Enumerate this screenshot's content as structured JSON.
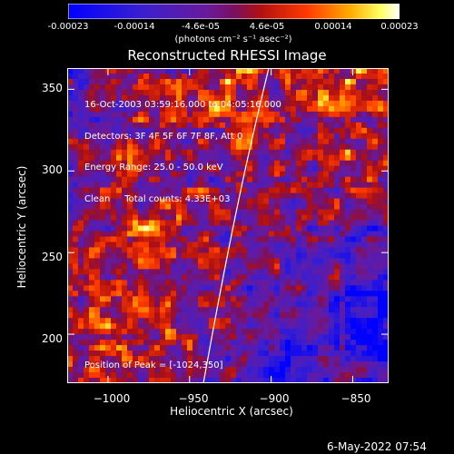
{
  "colorbar": {
    "ticks": [
      "-0.00023",
      "-0.00014",
      "-4.6e-05",
      "4.6e-05",
      "0.00014",
      "0.00023"
    ],
    "tick_values": [
      -0.00023,
      -0.00014,
      -4.6e-05,
      4.6e-05,
      0.00014,
      0.00023
    ],
    "units": "(photons cm⁻² s⁻¹ asec⁻²)",
    "min": -0.00023,
    "max": 0.00023
  },
  "plot": {
    "title": "Reconstructed RHESSI Image",
    "xlabel": "Heliocentric X (arcsec)",
    "ylabel": "Heliocentric Y (arcsec)",
    "xlim": [
      -1025,
      -828
    ],
    "ylim": [
      170,
      363
    ],
    "xticks": [
      "−1000",
      "−950",
      "−900",
      "−850"
    ],
    "xtick_values": [
      -1000,
      -950,
      -900,
      -850
    ],
    "yticks": [
      "350",
      "300",
      "250",
      "200"
    ],
    "ytick_values": [
      350,
      300,
      250,
      200
    ],
    "limb_color": "#ffffff"
  },
  "annotation": {
    "lines": [
      "16-Oct-2003 03:59:16.000 to 04:05:16.000",
      "Detectors: 3F 4F 5F 6F 7F 8F, Att 0",
      "Energy Range: 25.0 - 50.0 keV",
      "Clean     Total counts: 4.33E+03"
    ],
    "peak": "Position of Peak = [-1024,350]"
  },
  "datestamp": "6-May-2022 07:54",
  "colors": {
    "background": "#000000",
    "text": "#ffffff",
    "negative": "#0000ff",
    "positive_peak": "#ffffff"
  }
}
